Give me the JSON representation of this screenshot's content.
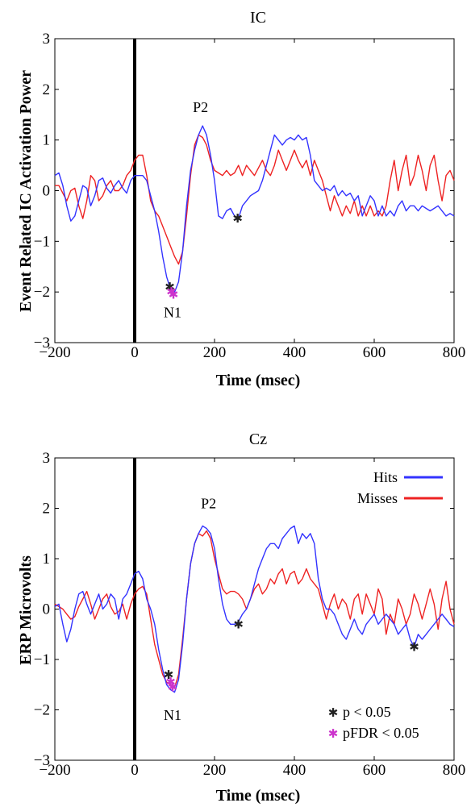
{
  "colors": {
    "hits": "#3333ff",
    "misses": "#ee2222",
    "p_marker": "#222222",
    "pfdr_marker": "#cc33cc"
  },
  "chart_data": [
    {
      "type": "line",
      "title": "IC",
      "xlabel": "Time (msec)",
      "ylabel": "Event Related IC Activation Power",
      "xlim": [
        -200,
        800
      ],
      "ylim": [
        -3,
        3
      ],
      "xticks": [
        -200,
        0,
        200,
        400,
        600,
        800
      ],
      "yticks": [
        -3,
        -2,
        -1,
        0,
        1,
        2,
        3
      ],
      "stimulus_line_x": 0,
      "grid": false,
      "series": [
        {
          "key": "hits",
          "color": "#3333ff",
          "x": [
            -200,
            -190,
            -180,
            -170,
            -160,
            -150,
            -140,
            -130,
            -120,
            -110,
            -100,
            -90,
            -80,
            -70,
            -60,
            -50,
            -40,
            -30,
            -20,
            -10,
            0,
            10,
            20,
            30,
            40,
            50,
            60,
            70,
            80,
            90,
            100,
            110,
            120,
            130,
            140,
            150,
            160,
            170,
            180,
            190,
            200,
            210,
            220,
            230,
            240,
            250,
            260,
            270,
            280,
            290,
            300,
            310,
            320,
            330,
            340,
            350,
            360,
            370,
            380,
            390,
            400,
            410,
            420,
            430,
            440,
            450,
            460,
            470,
            480,
            490,
            500,
            510,
            520,
            530,
            540,
            550,
            560,
            570,
            580,
            590,
            600,
            610,
            620,
            630,
            640,
            650,
            660,
            670,
            680,
            690,
            700,
            710,
            720,
            730,
            740,
            750,
            760,
            770,
            780,
            790,
            800
          ],
          "y": [
            0.3,
            0.35,
            0.1,
            -0.3,
            -0.6,
            -0.5,
            -0.2,
            0.1,
            0.05,
            -0.3,
            -0.1,
            0.2,
            0.25,
            0.05,
            -0.05,
            0.1,
            0.2,
            0.05,
            -0.05,
            0.2,
            0.3,
            0.3,
            0.3,
            0.2,
            -0.1,
            -0.4,
            -0.8,
            -1.3,
            -1.7,
            -1.95,
            -2.0,
            -1.8,
            -1.2,
            -0.3,
            0.4,
            0.8,
            1.1,
            1.28,
            1.1,
            0.7,
            0.2,
            -0.5,
            -0.55,
            -0.4,
            -0.35,
            -0.5,
            -0.55,
            -0.3,
            -0.2,
            -0.1,
            -0.05,
            0.0,
            0.2,
            0.5,
            0.8,
            1.1,
            1.0,
            0.9,
            1.0,
            1.05,
            1.0,
            1.1,
            1.0,
            1.05,
            0.7,
            0.2,
            0.1,
            0.0,
            0.05,
            0.0,
            0.1,
            -0.1,
            0.0,
            -0.1,
            -0.05,
            -0.2,
            -0.1,
            -0.5,
            -0.3,
            -0.1,
            -0.2,
            -0.5,
            -0.3,
            -0.5,
            -0.4,
            -0.5,
            -0.3,
            -0.2,
            -0.4,
            -0.3,
            -0.3,
            -0.4,
            -0.3,
            -0.35,
            -0.4,
            -0.35,
            -0.3,
            -0.4,
            -0.5,
            -0.45,
            -0.5
          ]
        },
        {
          "key": "misses",
          "color": "#ee2222",
          "x": [
            -200,
            -190,
            -180,
            -170,
            -160,
            -150,
            -140,
            -130,
            -120,
            -110,
            -100,
            -90,
            -80,
            -70,
            -60,
            -50,
            -40,
            -30,
            -20,
            -10,
            0,
            10,
            20,
            30,
            40,
            50,
            60,
            70,
            80,
            90,
            100,
            110,
            120,
            130,
            140,
            150,
            160,
            170,
            180,
            190,
            200,
            210,
            220,
            230,
            240,
            250,
            260,
            270,
            280,
            290,
            300,
            310,
            320,
            330,
            340,
            350,
            360,
            370,
            380,
            390,
            400,
            410,
            420,
            430,
            440,
            450,
            460,
            470,
            480,
            490,
            500,
            510,
            520,
            530,
            540,
            550,
            560,
            570,
            580,
            590,
            600,
            610,
            620,
            630,
            640,
            650,
            660,
            670,
            680,
            690,
            700,
            710,
            720,
            730,
            740,
            750,
            760,
            770,
            780,
            790,
            800
          ],
          "y": [
            0.1,
            0.1,
            -0.05,
            -0.2,
            0.0,
            0.05,
            -0.3,
            -0.55,
            -0.2,
            0.3,
            0.2,
            -0.2,
            -0.1,
            0.1,
            0.2,
            0.0,
            0.0,
            0.1,
            0.3,
            0.4,
            0.6,
            0.7,
            0.7,
            0.3,
            -0.2,
            -0.4,
            -0.5,
            -0.7,
            -0.9,
            -1.1,
            -1.3,
            -1.45,
            -1.2,
            -0.5,
            0.3,
            0.9,
            1.1,
            1.05,
            0.9,
            0.6,
            0.4,
            0.35,
            0.3,
            0.4,
            0.3,
            0.35,
            0.5,
            0.3,
            0.5,
            0.4,
            0.3,
            0.45,
            0.6,
            0.4,
            0.3,
            0.5,
            0.8,
            0.6,
            0.4,
            0.6,
            0.8,
            0.6,
            0.45,
            0.6,
            0.3,
            0.6,
            0.4,
            0.2,
            -0.1,
            -0.4,
            -0.1,
            -0.3,
            -0.5,
            -0.3,
            -0.45,
            -0.2,
            -0.5,
            -0.3,
            -0.5,
            -0.3,
            -0.5,
            -0.4,
            -0.5,
            -0.3,
            0.2,
            0.6,
            0.0,
            0.4,
            0.7,
            0.1,
            0.3,
            0.7,
            0.4,
            0.0,
            0.5,
            0.7,
            0.2,
            -0.2,
            0.3,
            0.4,
            0.2
          ]
        }
      ],
      "annotations": [
        {
          "text": "P2",
          "x": 165,
          "y": 1.55
        },
        {
          "text": "N1",
          "x": 95,
          "y": -2.5
        }
      ],
      "p_markers": [
        {
          "x": 88,
          "y": -1.9
        },
        {
          "x": 258,
          "y": -0.55
        }
      ],
      "pfdr_markers": [
        {
          "x": 92,
          "y": -2.0
        },
        {
          "x": 97,
          "y": -2.05
        }
      ]
    },
    {
      "type": "line",
      "title": "Cz",
      "xlabel": "Time (msec)",
      "ylabel": "ERP Microvolts",
      "xlim": [
        -200,
        800
      ],
      "ylim": [
        -3,
        3
      ],
      "xticks": [
        -200,
        0,
        200,
        400,
        600,
        800
      ],
      "yticks": [
        -3,
        -2,
        -1,
        0,
        1,
        2,
        3
      ],
      "stimulus_line_x": 0,
      "grid": false,
      "legend": {
        "position": "top-right",
        "entries": [
          {
            "label": "Hits",
            "key": "hits"
          },
          {
            "label": "Misses",
            "key": "misses"
          }
        ]
      },
      "series": [
        {
          "key": "hits",
          "color": "#3333ff",
          "x": [
            -200,
            -190,
            -180,
            -170,
            -160,
            -150,
            -140,
            -130,
            -120,
            -110,
            -100,
            -90,
            -80,
            -70,
            -60,
            -50,
            -40,
            -30,
            -20,
            -10,
            0,
            10,
            20,
            30,
            40,
            50,
            60,
            70,
            80,
            90,
            100,
            110,
            120,
            130,
            140,
            150,
            160,
            170,
            180,
            190,
            200,
            210,
            220,
            230,
            240,
            250,
            260,
            270,
            280,
            290,
            300,
            310,
            320,
            330,
            340,
            350,
            360,
            370,
            380,
            390,
            400,
            410,
            420,
            430,
            440,
            450,
            460,
            470,
            480,
            490,
            500,
            510,
            520,
            530,
            540,
            550,
            560,
            570,
            580,
            590,
            600,
            610,
            620,
            630,
            640,
            650,
            660,
            670,
            680,
            690,
            700,
            710,
            720,
            730,
            740,
            750,
            760,
            770,
            780,
            790,
            800
          ],
          "y": [
            0.05,
            0.1,
            -0.3,
            -0.65,
            -0.4,
            0.0,
            0.3,
            0.35,
            0.1,
            -0.1,
            0.1,
            0.3,
            0.0,
            0.1,
            0.3,
            0.2,
            -0.2,
            0.2,
            0.3,
            0.5,
            0.7,
            0.75,
            0.6,
            0.2,
            0.0,
            -0.3,
            -0.8,
            -1.2,
            -1.5,
            -1.6,
            -1.65,
            -1.4,
            -0.7,
            0.2,
            0.9,
            1.3,
            1.5,
            1.65,
            1.6,
            1.5,
            1.2,
            0.6,
            0.1,
            -0.2,
            -0.3,
            -0.3,
            -0.25,
            -0.1,
            0.0,
            0.2,
            0.5,
            0.8,
            1.0,
            1.2,
            1.3,
            1.3,
            1.2,
            1.4,
            1.5,
            1.6,
            1.65,
            1.3,
            1.5,
            1.4,
            1.5,
            1.3,
            0.6,
            0.2,
            0.0,
            0.0,
            -0.1,
            -0.3,
            -0.5,
            -0.6,
            -0.4,
            -0.2,
            -0.4,
            -0.5,
            -0.3,
            -0.2,
            -0.1,
            -0.3,
            -0.2,
            -0.1,
            -0.2,
            -0.3,
            -0.5,
            -0.4,
            -0.3,
            -0.6,
            -0.75,
            -0.5,
            -0.6,
            -0.5,
            -0.4,
            -0.3,
            -0.2,
            -0.1,
            -0.2,
            -0.3,
            -0.35
          ]
        },
        {
          "key": "misses",
          "color": "#ee2222",
          "x": [
            -200,
            -190,
            -180,
            -170,
            -160,
            -150,
            -140,
            -130,
            -120,
            -110,
            -100,
            -90,
            -80,
            -70,
            -60,
            -50,
            -40,
            -30,
            -20,
            -10,
            0,
            10,
            20,
            30,
            40,
            50,
            60,
            70,
            80,
            90,
            100,
            110,
            120,
            130,
            140,
            150,
            160,
            170,
            180,
            190,
            200,
            210,
            220,
            230,
            240,
            250,
            260,
            270,
            280,
            290,
            300,
            310,
            320,
            330,
            340,
            350,
            360,
            370,
            380,
            390,
            400,
            410,
            420,
            430,
            440,
            450,
            460,
            470,
            480,
            490,
            500,
            510,
            520,
            530,
            540,
            550,
            560,
            570,
            580,
            590,
            600,
            610,
            620,
            630,
            640,
            650,
            660,
            670,
            680,
            690,
            700,
            710,
            720,
            730,
            740,
            750,
            760,
            770,
            780,
            790,
            800
          ],
          "y": [
            0.1,
            0.05,
            0.0,
            -0.1,
            -0.2,
            -0.15,
            0.05,
            0.2,
            0.35,
            0.1,
            -0.2,
            0.0,
            0.2,
            0.3,
            0.05,
            -0.1,
            -0.05,
            0.1,
            -0.2,
            0.1,
            0.3,
            0.4,
            0.45,
            0.3,
            -0.2,
            -0.7,
            -1.0,
            -1.3,
            -1.45,
            -1.5,
            -1.55,
            -1.3,
            -0.6,
            0.2,
            0.9,
            1.3,
            1.5,
            1.45,
            1.55,
            1.4,
            1.0,
            0.7,
            0.4,
            0.3,
            0.35,
            0.35,
            0.3,
            0.2,
            0.0,
            0.2,
            0.4,
            0.5,
            0.3,
            0.4,
            0.6,
            0.5,
            0.7,
            0.8,
            0.5,
            0.7,
            0.75,
            0.5,
            0.6,
            0.8,
            0.6,
            0.5,
            0.4,
            0.1,
            -0.2,
            0.1,
            0.3,
            0.0,
            0.2,
            0.1,
            -0.2,
            0.2,
            0.3,
            -0.1,
            0.3,
            0.1,
            -0.1,
            0.4,
            0.2,
            -0.5,
            -0.1,
            -0.3,
            0.2,
            0.0,
            -0.3,
            -0.1,
            0.3,
            0.1,
            -0.2,
            0.1,
            0.4,
            0.1,
            -0.4,
            0.2,
            0.55,
            0.0,
            -0.3
          ]
        }
      ],
      "annotations": [
        {
          "text": "P2",
          "x": 185,
          "y": 2.0
        },
        {
          "text": "N1",
          "x": 95,
          "y": -2.2
        }
      ],
      "p_markers": [
        {
          "x": 85,
          "y": -1.3
        },
        {
          "x": 260,
          "y": -0.3
        },
        {
          "x": 700,
          "y": -0.75
        }
      ],
      "pfdr_markers": [
        {
          "x": 90,
          "y": -1.45
        },
        {
          "x": 95,
          "y": -1.55
        }
      ],
      "marker_legend": [
        {
          "label": "p < 0.05",
          "marker": "p"
        },
        {
          "label": "pFDR < 0.05",
          "marker": "pfdr"
        }
      ]
    }
  ]
}
